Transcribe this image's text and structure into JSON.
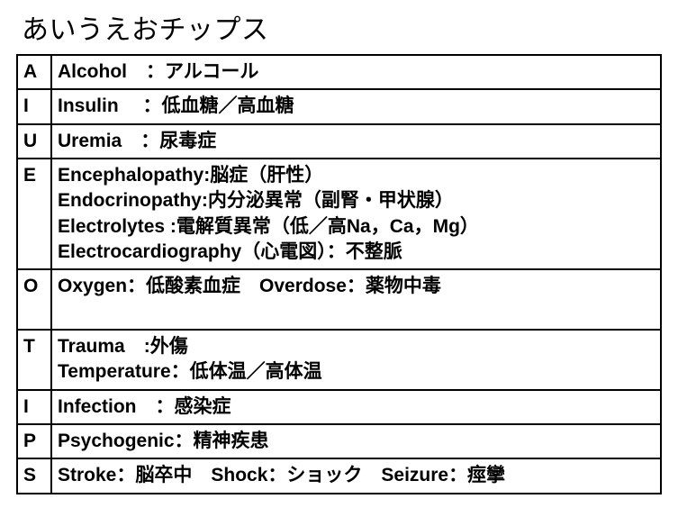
{
  "title": "あいうえおチップス",
  "rows": [
    {
      "letter": "A",
      "lines": [
        "Alcohol　：アルコール"
      ]
    },
    {
      "letter": "I",
      "lines": [
        "Insulin　 ：低血糖／高血糖"
      ]
    },
    {
      "letter": "U",
      "lines": [
        "Uremia　：尿毒症"
      ]
    },
    {
      "letter": "E",
      "lines": [
        "Encephalopathy:脳症（肝性）",
        "Endocrinopathy:内分泌異常（副腎・甲状腺）",
        "Electrolytes :電解質異常（低／高Na，Ca，Mg）",
        "Electrocardiography（心電図）：不整脈"
      ]
    },
    {
      "letter": "O",
      "lines": [
        "Oxygen：低酸素血症　Overdose：薬物中毒",
        " "
      ]
    },
    {
      "letter": "T",
      "lines": [
        "Trauma　:外傷",
        "Temperature：低体温／高体温"
      ]
    },
    {
      "letter": "I",
      "lines": [
        "Infection　：感染症"
      ]
    },
    {
      "letter": "P",
      "lines": [
        "Psychogenic：精神疾患"
      ]
    },
    {
      "letter": "S",
      "lines": [
        "Stroke：脳卒中　Shock：ショック　Seizure：痙攣"
      ]
    }
  ]
}
